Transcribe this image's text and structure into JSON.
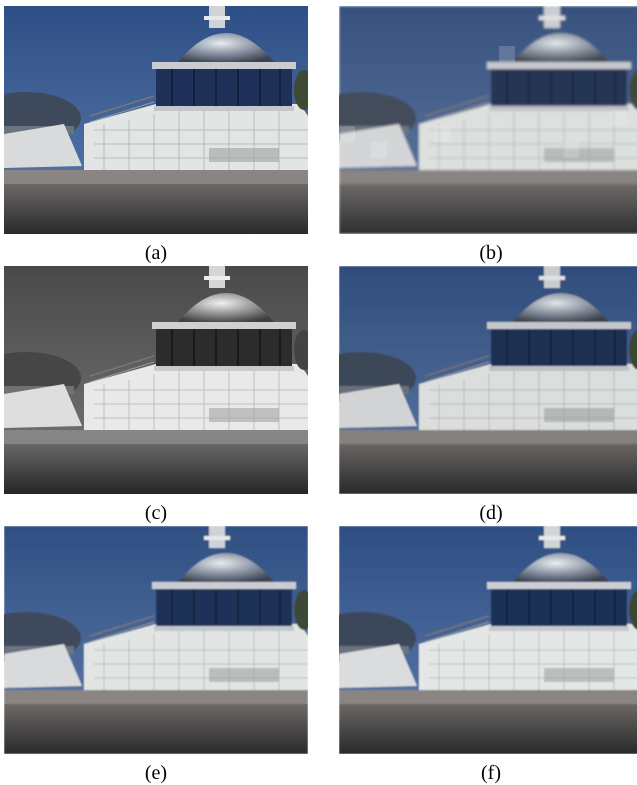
{
  "panels": [
    {
      "id": "a",
      "caption": "(a)",
      "variant": "original"
    },
    {
      "id": "b",
      "caption": "(b)",
      "variant": "blocky"
    },
    {
      "id": "c",
      "caption": "(c)",
      "variant": "grayscale"
    },
    {
      "id": "d",
      "caption": "(d)",
      "variant": "smoothed"
    },
    {
      "id": "e",
      "caption": "(e)",
      "variant": "restored"
    },
    {
      "id": "f",
      "caption": "(f)",
      "variant": "restored"
    }
  ],
  "colors": {
    "sky_color": "#3b5f97",
    "sky_gray": "#6e6e6e",
    "dome": "#9aa4b2",
    "glass": "#1d2f55",
    "wall": "#e3e6e4",
    "road": "#3a3a3c"
  }
}
